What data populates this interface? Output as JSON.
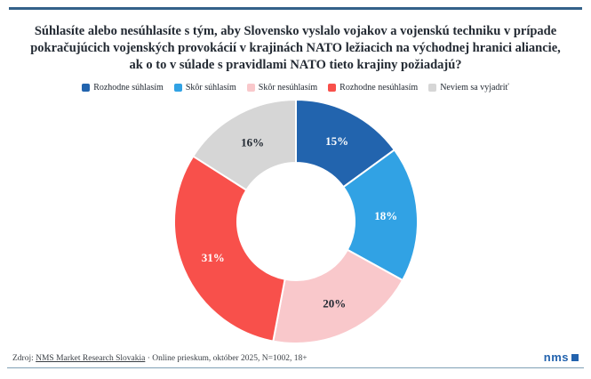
{
  "meta": {
    "background": "#ffffff",
    "top_rule_color": "#336189",
    "bottom_rule_color": "#7fa0b6",
    "title_color": "#232a33"
  },
  "title": "Súhlasíte alebo nesúhlasíte s tým, aby Slovensko vyslalo vojakov a vojenskú techniku v prípade pokračujúcich vojenských provokácií v krajinách NATO ležiacich na východnej hranici aliancie, ak o to v súlade s pravidlami NATO tieto krajiny požiadajú?",
  "chart_data": {
    "type": "pie",
    "subtype": "donut",
    "title": "Súhlasíte alebo nesúhlasíte s tým, aby Slovensko vyslalo vojakov a vojenskú techniku v prípade pokračujúcich vojenských provokácií v krajinách NATO ležiacich na východnej hranici aliancie, ak o to v súlade s pravidlami NATO tieto krajiny požiadajú?",
    "categories": [
      "Rozhodne súhlasím",
      "Skôr súhlasím",
      "Skôr nesúhlasím",
      "Rozhodne nesúhlasím",
      "Neviem sa vyjadriť"
    ],
    "values": [
      15,
      18,
      20,
      31,
      16
    ],
    "labels": [
      "15%",
      "18%",
      "20%",
      "31%",
      "16%"
    ],
    "unit": "%",
    "colors": [
      "#2264ae",
      "#31a2e4",
      "#f9c8cb",
      "#f8504b",
      "#d6d6d6"
    ],
    "label_colors": [
      "#ffffff",
      "#ffffff",
      "#232a33",
      "#ffffff",
      "#232a33"
    ],
    "start_angle_deg": 0,
    "direction": "clockwise",
    "inner_radius_ratio": 0.48,
    "slice_gap_stroke": "#ffffff",
    "legend_position": "top"
  },
  "footer": {
    "source_prefix": "Zdroj: ",
    "source_link": "NMS Market Research Slovakia",
    "source_rest": " · Online prieskum, október 2025, N=1002, 18+",
    "logo_text": "nms",
    "logo_color": "#2363ae"
  }
}
